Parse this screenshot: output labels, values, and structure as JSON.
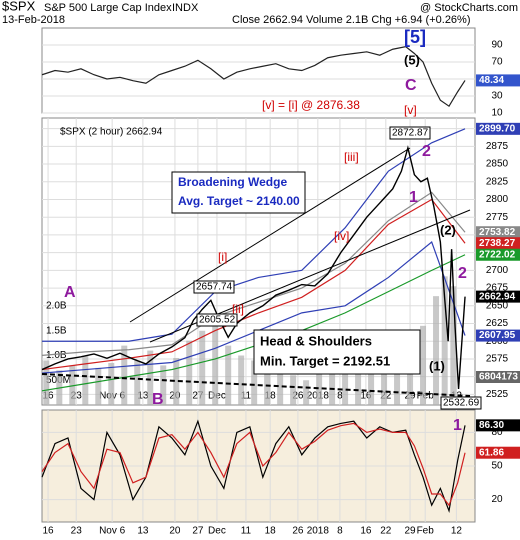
{
  "header": {
    "symbol": "$SPX",
    "name": "S&P 500 Large Cap Index",
    "exchange": "INDX",
    "date": "13-Feb-2018",
    "quote": "Close 2662.94 Volume 2.1B Chg +6.94 (+0.26%)",
    "source": "@ StockCharts.com"
  },
  "chart_data": [
    {
      "type": "line",
      "ylim": [
        10,
        110
      ],
      "yticks": [
        10,
        30,
        50,
        70,
        90
      ],
      "grid": true,
      "series": [
        {
          "color": "#222222",
          "x": [
            0,
            3,
            6,
            9,
            12,
            15,
            18,
            21,
            24,
            27,
            30,
            33,
            36,
            39,
            42,
            45,
            48,
            51,
            54,
            57,
            60,
            63,
            66,
            69,
            72,
            75,
            78,
            81,
            84,
            86,
            88,
            90,
            92,
            94,
            96,
            97.7
          ],
          "values": [
            55,
            60,
            58,
            62,
            55,
            50,
            52,
            48,
            45,
            55,
            60,
            65,
            72,
            62,
            50,
            58,
            62,
            65,
            68,
            62,
            60,
            66,
            75,
            78,
            80,
            82,
            78,
            85,
            88,
            80,
            70,
            45,
            25,
            18,
            35,
            48.34
          ]
        }
      ],
      "price_labels": [
        {
          "value": 48.34,
          "label": "48.34",
          "color": "#3355cc"
        }
      ]
    },
    {
      "type": "line",
      "title": "$SPX (2 hour) 2662.94",
      "xlim": [
        0,
        100
      ],
      "ylim": [
        2510,
        2915
      ],
      "yticks": [
        2525,
        2550,
        2575,
        2600,
        2625,
        2650,
        2675,
        2700,
        2725,
        2750,
        2775,
        2800,
        2825,
        2850,
        2875,
        2900
      ],
      "grid": true,
      "xticks": [
        {
          "value": 1.4,
          "label": "16"
        },
        {
          "value": 7.9,
          "label": "23"
        },
        {
          "value": 16.2,
          "label": "Nov 6"
        },
        {
          "value": 23.3,
          "label": "13"
        },
        {
          "value": 30.7,
          "label": "20"
        },
        {
          "value": 36,
          "label": "27"
        },
        {
          "value": 40.4,
          "label": "Dec"
        },
        {
          "value": 47.1,
          "label": "11"
        },
        {
          "value": 52.7,
          "label": "18"
        },
        {
          "value": 59.1,
          "label": "26"
        },
        {
          "value": 63.7,
          "label": "2018"
        },
        {
          "value": 68.8,
          "label": "8"
        },
        {
          "value": 74.8,
          "label": "16"
        },
        {
          "value": 79.4,
          "label": "22"
        },
        {
          "value": 85,
          "label": "29"
        },
        {
          "value": 88.5,
          "label": "Feb"
        },
        {
          "value": 95.7,
          "label": "12"
        }
      ],
      "y2lim": [
        0,
        5800000000
      ],
      "y2ticks": [
        {
          "value": 500000000,
          "label": "500M"
        },
        {
          "value": 1000000000,
          "label": "1.0B"
        },
        {
          "value": 1500000000,
          "label": "1.5B"
        },
        {
          "value": 2000000000,
          "label": "2.0B"
        }
      ],
      "series": [
        {
          "color": "#b0b0b0",
          "type": "bar",
          "axis": "y2",
          "x": [
            1,
            4,
            7,
            10,
            13,
            16,
            19,
            22,
            25,
            28,
            31,
            34,
            37,
            40,
            43,
            46,
            49,
            52,
            55,
            58,
            61,
            64,
            67,
            70,
            73,
            76,
            79,
            82,
            85,
            88,
            91,
            93,
            95,
            97
          ],
          "values": [
            900000000,
            700000000,
            800000000,
            1000000000,
            750000000,
            850000000,
            1200000000,
            900000000,
            1100000000,
            800000000,
            950000000,
            1300000000,
            1500000000,
            1700000000,
            1200000000,
            1000000000,
            900000000,
            1100000000,
            700000000,
            600000000,
            500000000,
            900000000,
            1000000000,
            1100000000,
            950000000,
            1200000000,
            1000000000,
            1300000000,
            1400000000,
            1600000000,
            2200000000,
            2600000000,
            2400000000,
            6804173
          ]
        },
        {
          "color": "#2f3fb5",
          "x": [
            0,
            10,
            20,
            30,
            40,
            50,
            60,
            70,
            80,
            90,
            97.7
          ],
          "values": [
            2600,
            2600,
            2600,
            2610,
            2670,
            2690,
            2700,
            2760,
            2840,
            2880,
            2899.7
          ]
        },
        {
          "color": "#2f3fb5",
          "x": [
            0,
            10,
            20,
            30,
            40,
            50,
            60,
            70,
            80,
            90,
            97.7
          ],
          "values": [
            2555,
            2560,
            2565,
            2570,
            2590,
            2615,
            2640,
            2650,
            2690,
            2740,
            2607.95
          ]
        },
        {
          "color": "#888888",
          "x": [
            0,
            10,
            20,
            30,
            40,
            50,
            60,
            70,
            80,
            90,
            97.7
          ],
          "values": [
            2580,
            2585,
            2588,
            2595,
            2635,
            2655,
            2675,
            2710,
            2770,
            2810,
            2753.82
          ]
        },
        {
          "color": "#d02020",
          "x": [
            0,
            10,
            20,
            30,
            40,
            50,
            60,
            70,
            80,
            90,
            97.7
          ],
          "values": [
            2560,
            2568,
            2576,
            2585,
            2615,
            2640,
            2662,
            2700,
            2765,
            2800,
            2738.27
          ]
        },
        {
          "color": "#1a9a2a",
          "x": [
            0,
            10,
            20,
            30,
            40,
            50,
            60,
            70,
            80,
            90,
            97.7
          ],
          "values": [
            2530,
            2540,
            2550,
            2560,
            2575,
            2595,
            2615,
            2640,
            2670,
            2700,
            2722.02
          ]
        },
        {
          "color": "#000000",
          "x": [
            0,
            3,
            6,
            9,
            12,
            15,
            18,
            21,
            24,
            27,
            30,
            33,
            35,
            37,
            39,
            41,
            43,
            45,
            48,
            51,
            54,
            57,
            60,
            63,
            66,
            69,
            72,
            75,
            78,
            81,
            83,
            84.5,
            86,
            87.5,
            89,
            90.5,
            92,
            93,
            93.8,
            94.6,
            95.4,
            96.2,
            97.7
          ],
          "values": [
            2560,
            2568,
            2575,
            2578,
            2582,
            2576,
            2583,
            2575,
            2568,
            2582,
            2592,
            2605,
            2630,
            2645,
            2657.74,
            2630,
            2605.52,
            2625,
            2640,
            2650,
            2665,
            2672,
            2680,
            2678,
            2695,
            2725,
            2750,
            2775,
            2795,
            2815,
            2840,
            2872.87,
            2835,
            2825,
            2830,
            2790,
            2740,
            2660,
            2600,
            2730,
            2620,
            2532.69,
            2662.94
          ]
        }
      ],
      "price_labels": [
        {
          "value": 2899.7,
          "label": "2899.70",
          "color": "#2f3fb5"
        },
        {
          "value": 2753.82,
          "label": "2753.82",
          "color": "#888888"
        },
        {
          "value": 2738.27,
          "label": "2738.27",
          "color": "#d02020"
        },
        {
          "value": 2722.02,
          "label": "2722.02",
          "color": "#1a9a2a"
        },
        {
          "value": 2662.94,
          "label": "2662.94",
          "color": "#000000"
        },
        {
          "value": 2607.95,
          "label": "2607.95",
          "color": "#2f3fb5"
        }
      ],
      "volume_label": 6804173,
      "annotations": [
        "[5]",
        "(5)",
        "C",
        "[v] = [i] @ 2876.38",
        "[v]",
        "2872.87",
        "[iii]",
        "2",
        "1",
        "[iv]",
        "(2)",
        "2",
        "[i]",
        "2657.74",
        "[ii]",
        "2605.52",
        "A",
        "B",
        "Head & Shoulders",
        "Min. Target = 2192.51",
        "(1)",
        "2532.69",
        "1",
        "Broadening Wedge",
        "Avg. Target ~ 2140.00"
      ]
    },
    {
      "type": "line",
      "xlim": [
        0,
        100
      ],
      "ylim": [
        0,
        100
      ],
      "yticks": [
        20,
        50,
        80
      ],
      "grid": true,
      "xticks": [
        {
          "value": 1.4,
          "label": "16"
        },
        {
          "value": 7.9,
          "label": "23"
        },
        {
          "value": 16.2,
          "label": "Nov 6"
        },
        {
          "value": 23.3,
          "label": "13"
        },
        {
          "value": 30.7,
          "label": "20"
        },
        {
          "value": 36,
          "label": "27"
        },
        {
          "value": 40.4,
          "label": "Dec"
        },
        {
          "value": 47.1,
          "label": "11"
        },
        {
          "value": 52.7,
          "label": "18"
        },
        {
          "value": 59.1,
          "label": "26"
        },
        {
          "value": 63.7,
          "label": "2018"
        },
        {
          "value": 68.8,
          "label": "8"
        },
        {
          "value": 74.8,
          "label": "16"
        },
        {
          "value": 79.4,
          "label": "22"
        },
        {
          "value": 85,
          "label": "29"
        },
        {
          "value": 88.5,
          "label": "Feb"
        },
        {
          "value": 95.7,
          "label": "12"
        }
      ],
      "series": [
        {
          "color": "#000000",
          "x": [
            0,
            3,
            6,
            9,
            12,
            15,
            18,
            21,
            24,
            27,
            30,
            33,
            36,
            39,
            42,
            45,
            48,
            51,
            54,
            57,
            60,
            63,
            66,
            69,
            72,
            75,
            78,
            81,
            84,
            86,
            88,
            90,
            92,
            94,
            96,
            97.7
          ],
          "values": [
            40,
            70,
            75,
            30,
            20,
            80,
            60,
            20,
            40,
            85,
            75,
            60,
            90,
            50,
            30,
            80,
            85,
            40,
            70,
            85,
            60,
            75,
            85,
            88,
            90,
            75,
            85,
            80,
            82,
            60,
            40,
            15,
            30,
            10,
            55,
            86.3
          ]
        },
        {
          "color": "#d02020",
          "x": [
            0,
            3,
            6,
            9,
            12,
            15,
            18,
            21,
            24,
            27,
            30,
            33,
            36,
            39,
            42,
            45,
            48,
            51,
            54,
            57,
            60,
            63,
            66,
            69,
            72,
            75,
            78,
            81,
            84,
            86,
            88,
            90,
            92,
            94,
            96,
            97.7
          ],
          "values": [
            45,
            62,
            70,
            45,
            30,
            65,
            62,
            35,
            40,
            75,
            78,
            65,
            80,
            62,
            40,
            70,
            80,
            50,
            62,
            80,
            65,
            72,
            82,
            86,
            88,
            80,
            83,
            80,
            80,
            68,
            48,
            25,
            25,
            15,
            35,
            61.86
          ]
        }
      ],
      "price_labels": [
        {
          "value": 86.3,
          "label": "86.30",
          "color": "#000000"
        },
        {
          "value": 61.86,
          "label": "61.86",
          "color": "#d02020"
        }
      ]
    }
  ]
}
